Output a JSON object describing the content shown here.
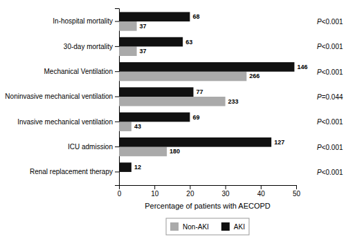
{
  "chart_data": {
    "type": "bar",
    "orientation": "horizontal",
    "categories": [
      "Renal replacement therapy",
      "ICU admission",
      "Invasive mechanical ventilation",
      "Noninvasive mechanical ventilation",
      "Mechanical Ventilation",
      "30-day mortality",
      "In-hospital mortality"
    ],
    "series": [
      {
        "name": "Non-AKI",
        "color": "#aaaaaa",
        "values": [
          0.0,
          13.5,
          3.5,
          30.0,
          36.0,
          5.0,
          5.0
        ],
        "counts": [
          null,
          180,
          43,
          233,
          266,
          37,
          37
        ]
      },
      {
        "name": "AKI",
        "color": "#111111",
        "values": [
          3.5,
          43.0,
          20.0,
          21.0,
          49.5,
          18.0,
          20.0
        ],
        "counts": [
          12,
          127,
          69,
          77,
          146,
          63,
          68
        ]
      }
    ],
    "p_values": [
      "P<0.001",
      "P<0.001",
      "P<0.001",
      "P=0.044",
      "P<0.001",
      "P<0.001",
      "P<0.001"
    ],
    "xlabel": "Percentage of patients with AECOPD",
    "xlim": [
      0,
      50
    ],
    "xticks": [
      0,
      10,
      20,
      30,
      40,
      50
    ],
    "grid": false,
    "legend": "bottom"
  }
}
